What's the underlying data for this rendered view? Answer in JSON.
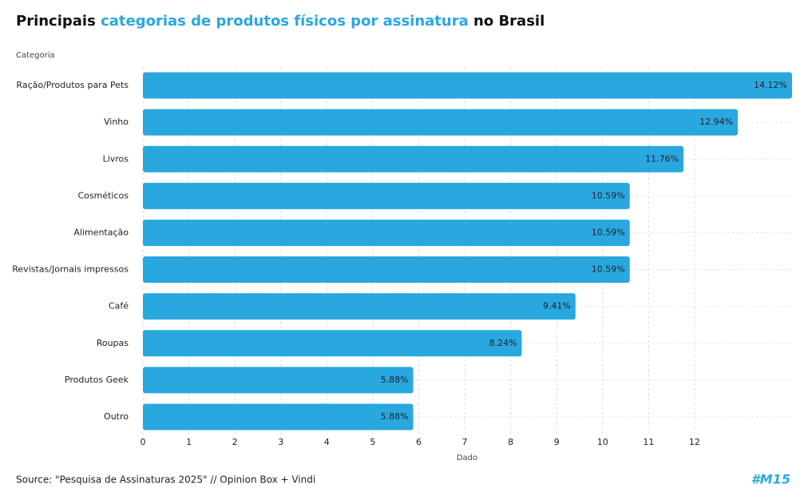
{
  "chart_data": {
    "type": "bar",
    "orientation": "horizontal",
    "title_parts": [
      "Principais",
      "categorias de produtos físicos por assinatura",
      "no Brasil"
    ],
    "title_colors": [
      "#111111",
      "#29a8e0",
      "#111111"
    ],
    "y_label": "Categoria",
    "x_label": "Dado",
    "categories": [
      "Ração/Produtos para Pets",
      "Vinho",
      "Livros",
      "Cosméticos",
      "Alimentação",
      "Revistas/Jornais impressos",
      "Café",
      "Roupas",
      "Produtos Geek",
      "Outro"
    ],
    "values": [
      14.12,
      12.94,
      11.76,
      10.59,
      10.59,
      10.59,
      9.41,
      8.24,
      5.88,
      5.88
    ],
    "value_labels": [
      "14.12%",
      "12.94%",
      "11.76%",
      "10.59%",
      "10.59%",
      "10.59%",
      "9.41%",
      "8.24%",
      "5.88%",
      "5.88%"
    ],
    "color": "#29a8e0",
    "xlim": [
      0,
      14.12
    ],
    "xticks": [
      0,
      1,
      2,
      3,
      4,
      5,
      6,
      7,
      8,
      9,
      10,
      11,
      12
    ],
    "grid": true,
    "source": "Source: \"Pesquisa de Assinaturas 2025\" // Opinion Box + Vindi",
    "logo": "#M15"
  }
}
